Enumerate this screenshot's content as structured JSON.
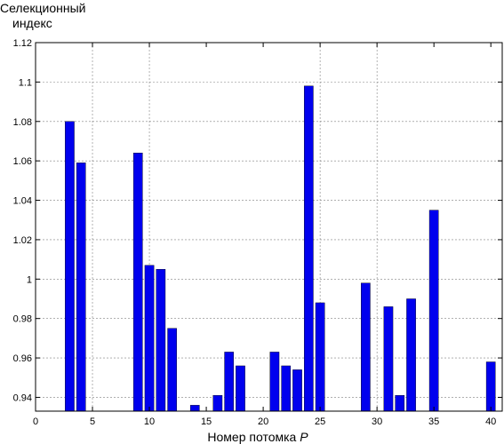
{
  "chart_data": {
    "type": "bar",
    "ylabel_lines": [
      "Селекционный",
      "индекс"
    ],
    "xlabel": "Номер потомка",
    "xlabel_var": "P",
    "xlim": [
      0,
      41
    ],
    "ylim": [
      0.933,
      1.12
    ],
    "x_ticks": [
      0,
      5,
      10,
      15,
      20,
      25,
      30,
      35,
      40
    ],
    "x_tick_labels": [
      "0",
      "5",
      "10",
      "15",
      "20",
      "25",
      "30",
      "35",
      "40"
    ],
    "y_ticks": [
      0.94,
      0.96,
      0.98,
      1.0,
      1.02,
      1.04,
      1.06,
      1.08,
      1.1,
      1.12
    ],
    "y_tick_labels": [
      "0.94",
      "0.96",
      "0.98",
      "1",
      "1.02",
      "1.04",
      "1.06",
      "1.08",
      "1.1",
      "1.12"
    ],
    "grid_x_values": [
      5,
      10,
      25,
      30
    ],
    "grid_y": true,
    "bar_color": "#0000ee",
    "grid_color": "#808080",
    "x": [
      3,
      4,
      9,
      10,
      11,
      12,
      14,
      16,
      17,
      18,
      21,
      22,
      23,
      24,
      25,
      29,
      31,
      32,
      33,
      35,
      40
    ],
    "values": [
      1.08,
      1.059,
      1.064,
      1.007,
      1.005,
      0.975,
      0.936,
      0.941,
      0.963,
      0.956,
      0.963,
      0.956,
      0.954,
      1.098,
      0.988,
      0.998,
      0.986,
      0.941,
      0.99,
      1.035,
      0.958
    ]
  }
}
